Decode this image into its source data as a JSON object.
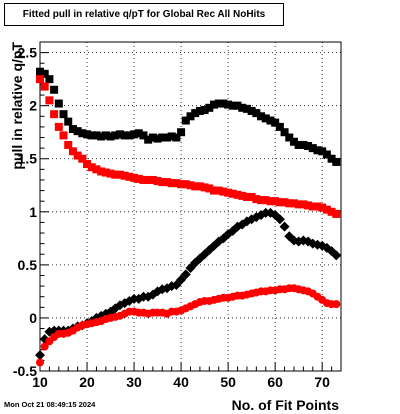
{
  "chart_data": {
    "type": "scatter",
    "title": "Fitted pull in relative q/pT for Global Rec All NoHits",
    "xlabel": "No. of Fit Points",
    "ylabel": "pull in relative q/pT",
    "xlim": [
      10,
      74
    ],
    "ylim": [
      -0.5,
      2.6
    ],
    "xticks": [
      10,
      20,
      30,
      40,
      50,
      60,
      70
    ],
    "yticks": [
      -0.5,
      0,
      0.5,
      1,
      1.5,
      2,
      2.5
    ],
    "grid": true,
    "timestamp": "Mon Oct 21 08:49:15 2024",
    "series": [
      {
        "marker": "square",
        "color": "#000000",
        "x": [
          10,
          11,
          12,
          13,
          14,
          15,
          16,
          17,
          18,
          19,
          20,
          21,
          22,
          23,
          24,
          25,
          26,
          27,
          28,
          29,
          30,
          31,
          32,
          33,
          34,
          35,
          36,
          37,
          38,
          39,
          40,
          41,
          42,
          43,
          44,
          45,
          46,
          47,
          48,
          49,
          50,
          51,
          52,
          53,
          54,
          55,
          56,
          57,
          58,
          59,
          60,
          61,
          62,
          63,
          64,
          65,
          66,
          67,
          68,
          69,
          70,
          71,
          72,
          73
        ],
        "y": [
          2.32,
          2.3,
          2.25,
          2.15,
          2.02,
          1.92,
          1.85,
          1.78,
          1.76,
          1.74,
          1.73,
          1.72,
          1.72,
          1.71,
          1.72,
          1.71,
          1.72,
          1.73,
          1.72,
          1.72,
          1.73,
          1.74,
          1.72,
          1.68,
          1.7,
          1.69,
          1.7,
          1.7,
          1.71,
          1.7,
          1.75,
          1.86,
          1.9,
          1.93,
          1.95,
          1.96,
          1.98,
          2.01,
          2.02,
          2.02,
          2.01,
          2.0,
          2.0,
          1.98,
          1.97,
          1.95,
          1.93,
          1.9,
          1.88,
          1.86,
          1.84,
          1.8,
          1.75,
          1.7,
          1.66,
          1.63,
          1.63,
          1.62,
          1.6,
          1.58,
          1.57,
          1.54,
          1.5,
          1.47
        ]
      },
      {
        "marker": "square",
        "color": "#ff0000",
        "x": [
          10,
          11,
          12,
          13,
          14,
          15,
          16,
          17,
          18,
          19,
          20,
          21,
          22,
          23,
          24,
          25,
          26,
          27,
          28,
          29,
          30,
          31,
          32,
          33,
          34,
          35,
          36,
          37,
          38,
          39,
          40,
          41,
          42,
          43,
          44,
          45,
          46,
          47,
          48,
          49,
          50,
          51,
          52,
          53,
          54,
          55,
          56,
          57,
          58,
          59,
          60,
          61,
          62,
          63,
          64,
          65,
          66,
          67,
          68,
          69,
          70,
          71,
          72,
          73
        ],
        "y": [
          2.25,
          2.18,
          2.05,
          1.92,
          1.8,
          1.72,
          1.63,
          1.57,
          1.53,
          1.5,
          1.45,
          1.42,
          1.4,
          1.38,
          1.37,
          1.36,
          1.35,
          1.35,
          1.34,
          1.33,
          1.32,
          1.31,
          1.3,
          1.3,
          1.3,
          1.29,
          1.28,
          1.28,
          1.27,
          1.27,
          1.26,
          1.26,
          1.25,
          1.24,
          1.24,
          1.23,
          1.22,
          1.2,
          1.2,
          1.19,
          1.18,
          1.17,
          1.16,
          1.15,
          1.14,
          1.14,
          1.12,
          1.11,
          1.11,
          1.1,
          1.1,
          1.09,
          1.09,
          1.08,
          1.08,
          1.07,
          1.07,
          1.06,
          1.05,
          1.05,
          1.04,
          1.02,
          1.0,
          0.98
        ]
      },
      {
        "marker": "diamond",
        "color": "#000000",
        "x": [
          10,
          11,
          12,
          13,
          14,
          15,
          16,
          17,
          18,
          19,
          20,
          21,
          22,
          23,
          24,
          25,
          26,
          27,
          28,
          29,
          30,
          31,
          32,
          33,
          34,
          35,
          36,
          37,
          38,
          39,
          40,
          41,
          42,
          43,
          44,
          45,
          46,
          47,
          48,
          49,
          50,
          51,
          52,
          53,
          54,
          55,
          56,
          57,
          58,
          59,
          60,
          61,
          62,
          63,
          64,
          65,
          66,
          67,
          68,
          69,
          70,
          71,
          72,
          73
        ],
        "y": [
          -0.35,
          -0.2,
          -0.13,
          -0.12,
          -0.12,
          -0.12,
          -0.12,
          -0.1,
          -0.08,
          -0.07,
          -0.05,
          -0.03,
          0.0,
          0.02,
          0.04,
          0.06,
          0.09,
          0.12,
          0.14,
          0.16,
          0.18,
          0.18,
          0.2,
          0.2,
          0.22,
          0.25,
          0.27,
          0.28,
          0.3,
          0.31,
          0.36,
          0.41,
          0.47,
          0.52,
          0.56,
          0.6,
          0.64,
          0.68,
          0.72,
          0.75,
          0.79,
          0.82,
          0.86,
          0.88,
          0.91,
          0.93,
          0.95,
          0.97,
          0.99,
          0.99,
          0.97,
          0.93,
          0.86,
          0.77,
          0.73,
          0.72,
          0.73,
          0.72,
          0.7,
          0.69,
          0.68,
          0.66,
          0.63,
          0.59
        ]
      },
      {
        "marker": "circle",
        "color": "#ff0000",
        "x": [
          10,
          11,
          12,
          13,
          14,
          15,
          16,
          17,
          18,
          19,
          20,
          21,
          22,
          23,
          24,
          25,
          26,
          27,
          28,
          29,
          30,
          31,
          32,
          33,
          34,
          35,
          36,
          37,
          38,
          39,
          40,
          41,
          42,
          43,
          44,
          45,
          46,
          47,
          48,
          49,
          50,
          51,
          52,
          53,
          54,
          55,
          56,
          57,
          58,
          59,
          60,
          61,
          62,
          63,
          64,
          65,
          66,
          67,
          68,
          69,
          70,
          71,
          72,
          73
        ],
        "y": [
          -0.42,
          -0.27,
          -0.22,
          -0.18,
          -0.15,
          -0.15,
          -0.14,
          -0.12,
          -0.09,
          -0.07,
          -0.06,
          -0.05,
          -0.04,
          -0.03,
          -0.01,
          0.0,
          0.01,
          0.02,
          0.04,
          0.06,
          0.06,
          0.05,
          0.05,
          0.04,
          0.05,
          0.05,
          0.05,
          0.04,
          0.06,
          0.06,
          0.07,
          0.09,
          0.11,
          0.13,
          0.15,
          0.16,
          0.16,
          0.17,
          0.18,
          0.19,
          0.19,
          0.2,
          0.21,
          0.21,
          0.22,
          0.23,
          0.24,
          0.25,
          0.25,
          0.26,
          0.26,
          0.27,
          0.27,
          0.28,
          0.28,
          0.27,
          0.26,
          0.25,
          0.23,
          0.2,
          0.17,
          0.14,
          0.13,
          0.13
        ]
      }
    ]
  }
}
